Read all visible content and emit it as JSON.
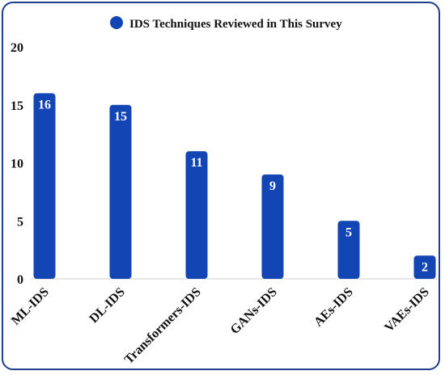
{
  "chart_data": {
    "type": "bar",
    "title": "",
    "xlabel": "",
    "ylabel": "",
    "ylim": [
      0,
      20
    ],
    "yticks": [
      0,
      5,
      10,
      15,
      20
    ],
    "grid": false,
    "legend_position": "top",
    "categories": [
      "ML-IDS",
      "DL-IDS",
      "Transformers-IDS",
      "GANs-IDS",
      "AEs-IDS",
      "VAEs-IDS"
    ],
    "series": [
      {
        "name": "IDS Techniques Reviewed in This Survey",
        "values": [
          16,
          15,
          11,
          9,
          5,
          2
        ],
        "color": "#1346b4"
      }
    ],
    "data_labels": true
  }
}
